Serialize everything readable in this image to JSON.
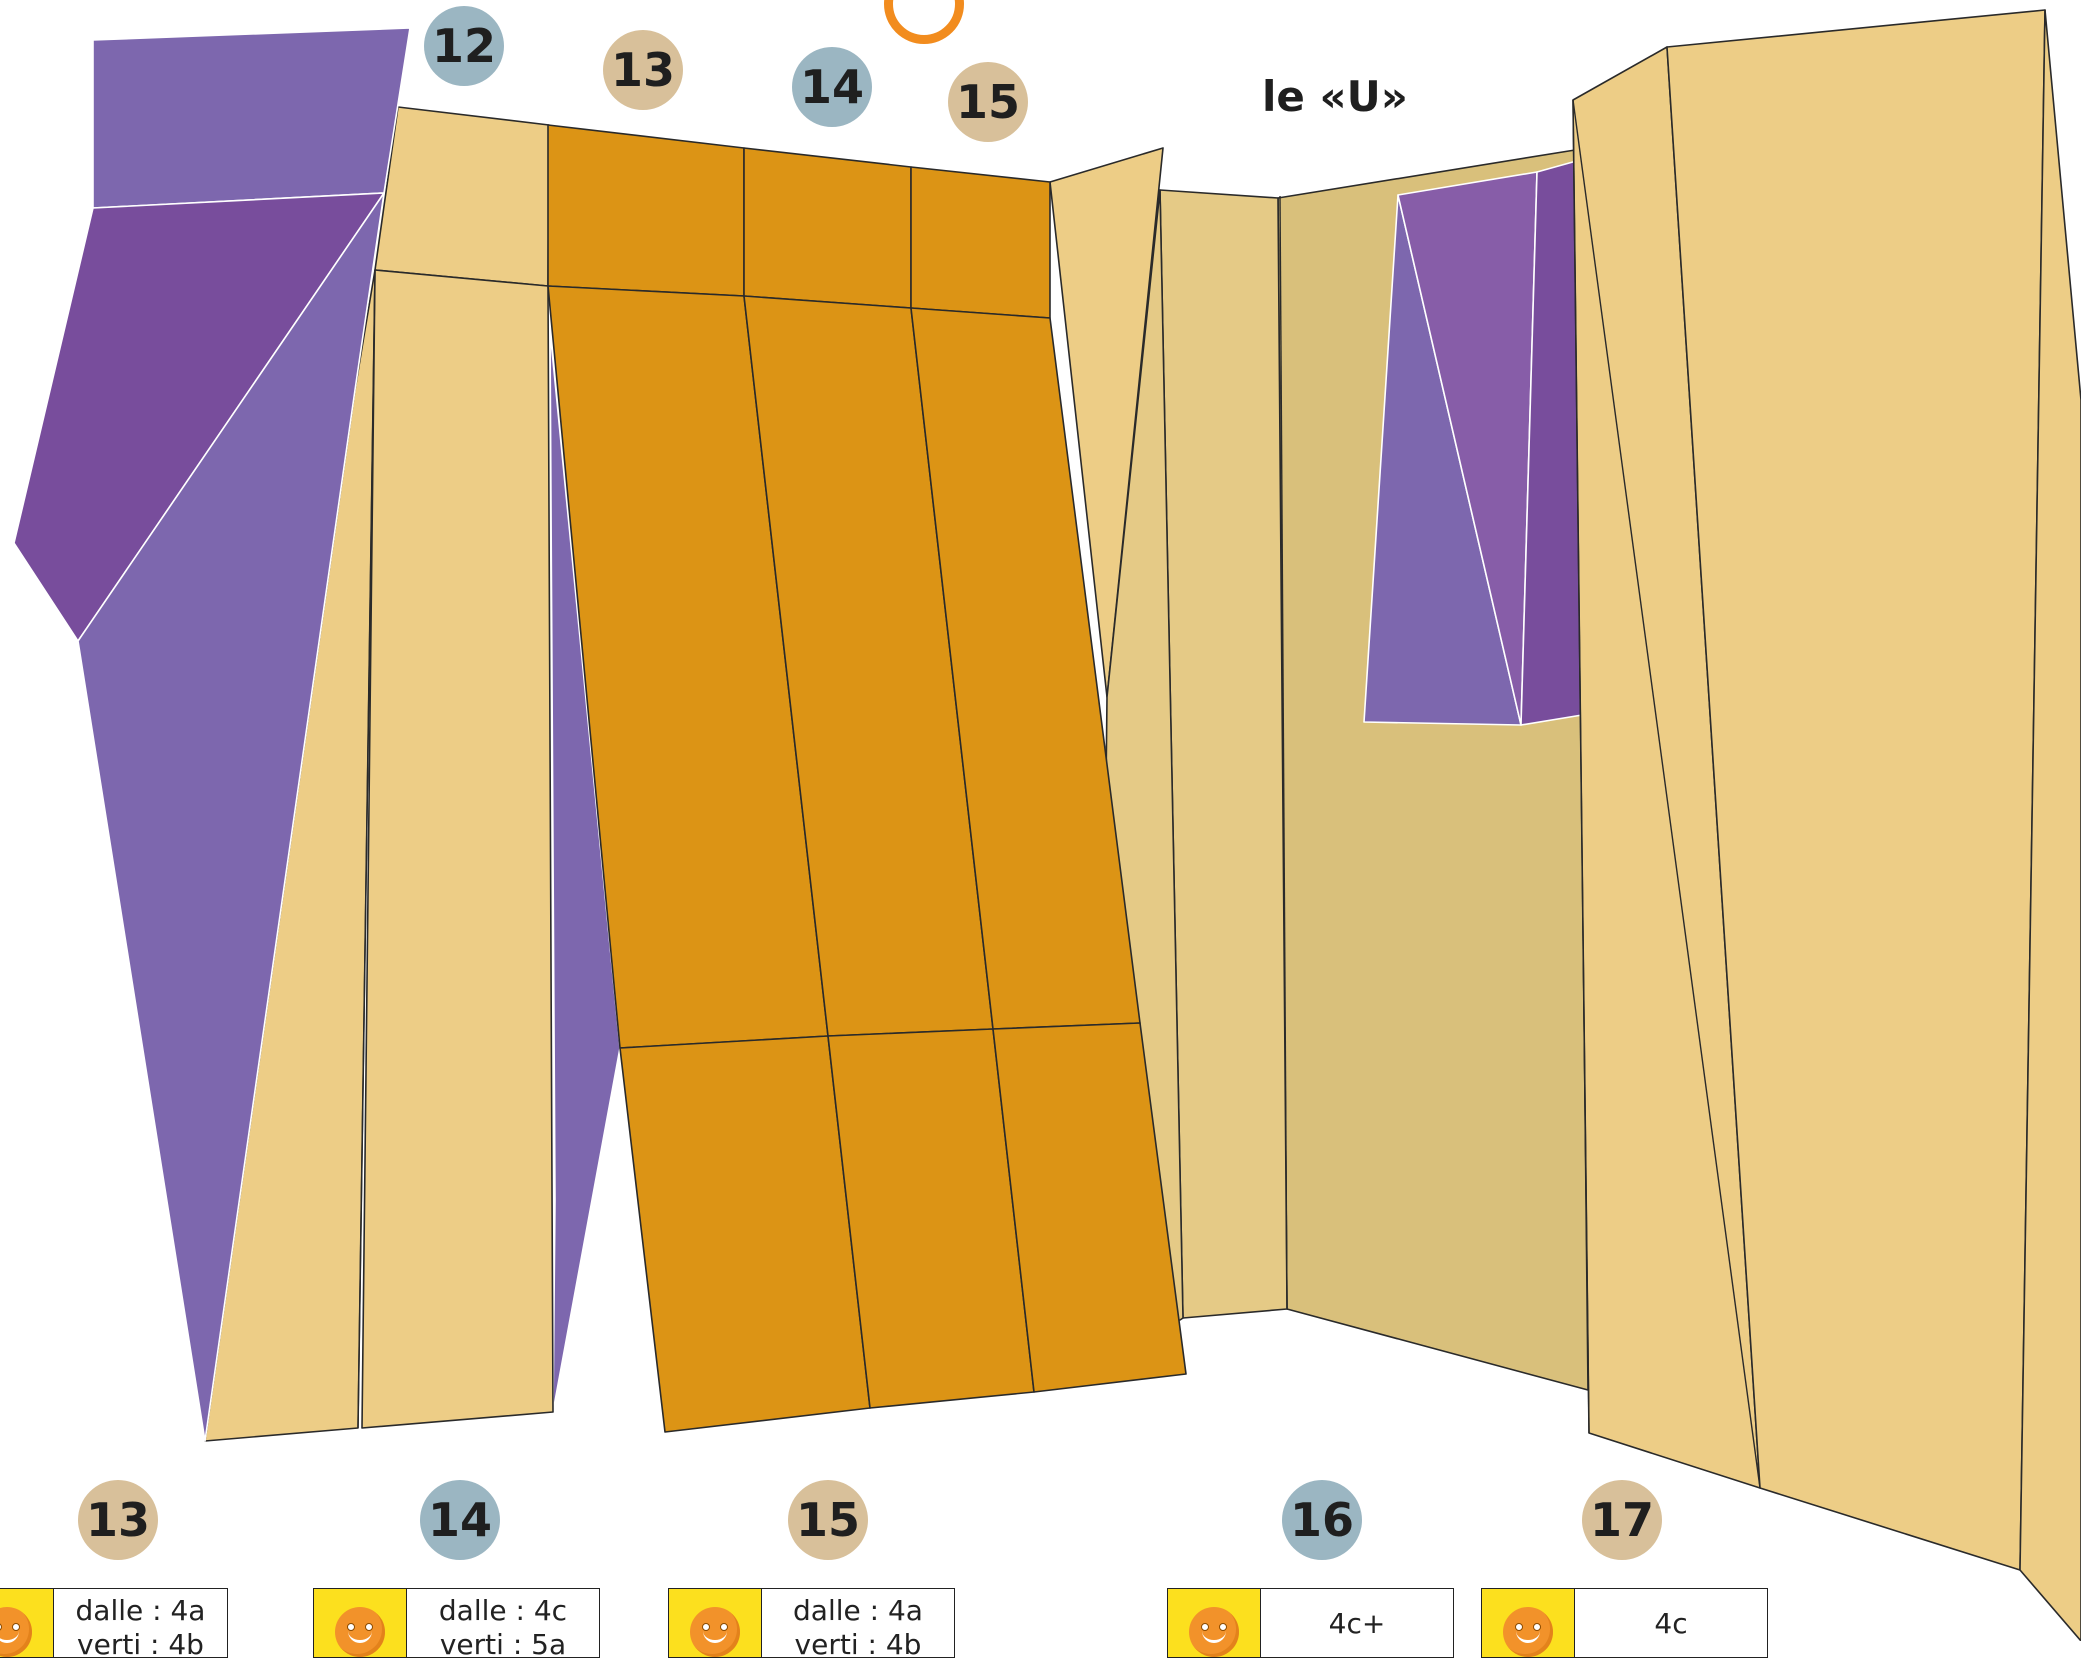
{
  "sector": {
    "title": "le «U»"
  },
  "top_badges": [
    {
      "number": "12",
      "style": "blue"
    },
    {
      "number": "13",
      "style": "tan"
    },
    {
      "number": "14",
      "style": "blue"
    },
    {
      "number": "15",
      "style": "tan"
    }
  ],
  "bottom_routes": [
    {
      "number": "13",
      "style": "tan",
      "line1": "dalle : 4a",
      "line2": "verti : 4b"
    },
    {
      "number": "14",
      "style": "blue",
      "line1": "dalle : 4c",
      "line2": "verti : 5a"
    },
    {
      "number": "15",
      "style": "tan",
      "line1": "dalle : 4a",
      "line2": "verti : 4b"
    },
    {
      "number": "16",
      "style": "blue",
      "line1": "4c+"
    },
    {
      "number": "17",
      "style": "tan",
      "line1": "4c"
    }
  ],
  "colors": {
    "purple_light": "#7d67ae",
    "purple_dark": "#784d9c",
    "purple_mid": "#875da8",
    "tan_light": "#edcd86",
    "tan_mid": "#e5ca86",
    "tan_dark": "#d9c07b",
    "orange": "#dc9415",
    "badge_tan": "#d8c09a",
    "badge_blue": "#9bb6c2",
    "smiley_bg": "#fce01e",
    "smiley_face": "#f2922a"
  }
}
